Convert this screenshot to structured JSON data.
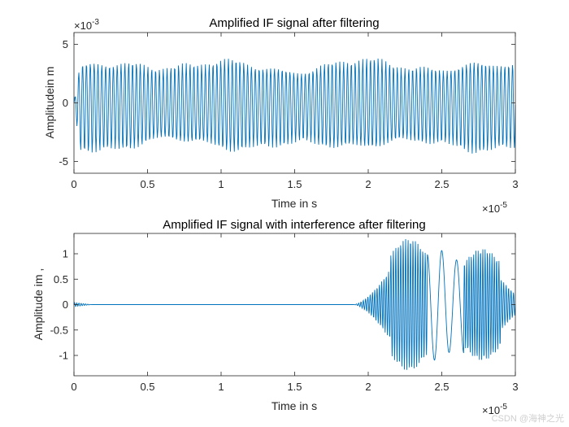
{
  "watermark": "CSDN @海神之光",
  "chart_data": [
    {
      "type": "line",
      "title": "Amplified IF signal after filtering",
      "xlabel": "Time in s",
      "ylabel": "Amplitudein m",
      "x_multiplier": "×10",
      "x_multiplier_exp": "-5",
      "y_multiplier": "×10",
      "y_multiplier_exp": "-3",
      "xlim": [
        0,
        3
      ],
      "ylim": [
        -6,
        6
      ],
      "xticks": [
        0,
        0.5,
        1,
        1.5,
        2,
        2.5,
        3
      ],
      "xtick_labels": [
        "0",
        "0.5",
        "1",
        "1.5",
        "2",
        "2.5",
        "3"
      ],
      "yticks": [
        -5,
        0,
        5
      ],
      "ytick_labels": [
        "-5",
        "0",
        "5"
      ],
      "color": "#0072BD",
      "series": [
        {
          "name": "IF signal",
          "description": "dense oscillation",
          "samples": 900,
          "cycles": 115,
          "start": 0,
          "end": 3,
          "baseline": -0.2,
          "amplitude": 3.4,
          "amplitude_ripple": 0.35,
          "value_range": [
            -4.2,
            4.0
          ]
        }
      ]
    },
    {
      "type": "line",
      "title": "Amplified IF signal with interference after filtering",
      "xlabel": "Time in s",
      "ylabel": "Amplitude im ,",
      "x_multiplier": "×10",
      "x_multiplier_exp": "-5",
      "xlim": [
        0,
        3
      ],
      "ylim": [
        -1.4,
        1.4
      ],
      "xticks": [
        0,
        0.5,
        1,
        1.5,
        2,
        2.5,
        3
      ],
      "xtick_labels": [
        "0",
        "0.5",
        "1",
        "1.5",
        "2",
        "2.5",
        "3"
      ],
      "yticks": [
        -1,
        -0.5,
        0,
        0.5,
        1
      ],
      "ytick_labels": [
        "-1",
        "-0.5",
        "0",
        "0.5",
        "1"
      ],
      "color": "#0072BD",
      "series": [
        {
          "name": "IF signal with interference",
          "segments": [
            {
              "from": 0,
              "to": 0.12,
              "kind": "decay",
              "amplitude": 0.04,
              "cycles": 8
            },
            {
              "from": 0.12,
              "to": 1.9,
              "kind": "flat",
              "amplitude": 0
            },
            {
              "from": 1.9,
              "to": 2.15,
              "kind": "rise",
              "amplitude": 0.7,
              "cycles": 16
            },
            {
              "from": 2.15,
              "to": 2.4,
              "kind": "burst",
              "amplitude": 1.3,
              "cycles": 15
            },
            {
              "from": 2.4,
              "to": 2.65,
              "kind": "slow",
              "amplitude": 1.1,
              "cycles": 2.5
            },
            {
              "from": 2.65,
              "to": 2.9,
              "kind": "burst",
              "amplitude": 1.1,
              "cycles": 16
            },
            {
              "from": 2.9,
              "to": 3.0,
              "kind": "decay",
              "amplitude": 0.5,
              "cycles": 6
            }
          ],
          "value_range": [
            -1.3,
            1.4
          ]
        }
      ]
    }
  ]
}
